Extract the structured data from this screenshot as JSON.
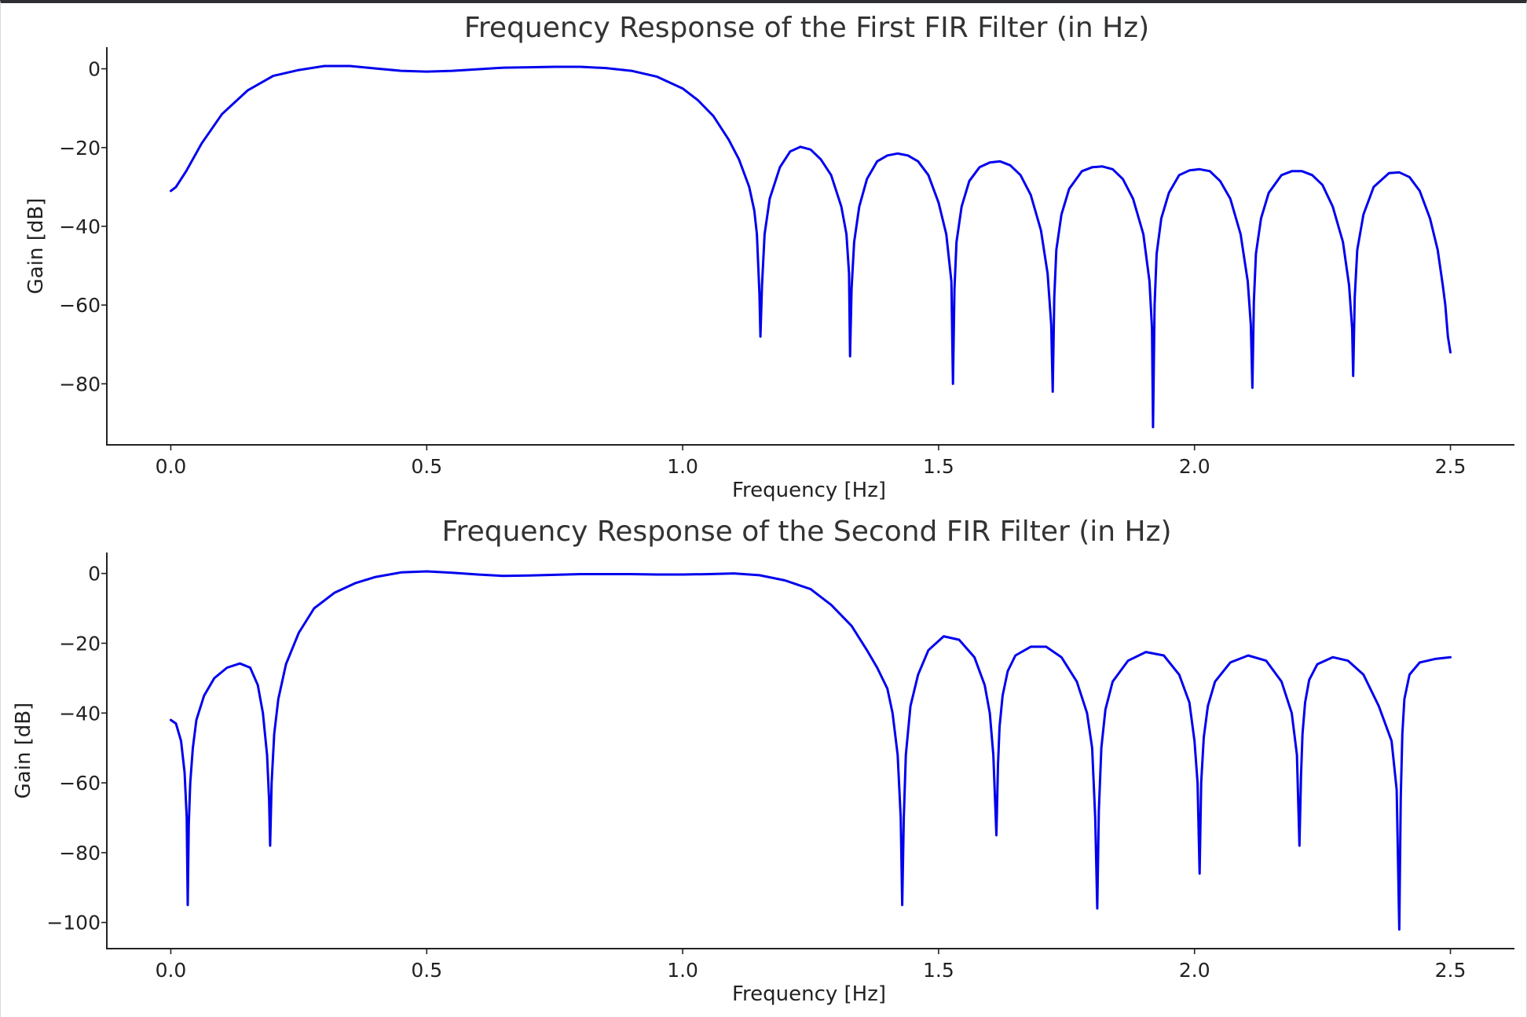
{
  "colors": {
    "line": "#0000ee"
  },
  "chart_data": [
    {
      "type": "line",
      "title": "Frequency Response of the First FIR Filter (in Hz)",
      "xlabel": "Frequency [Hz]",
      "ylabel": "Gain [dB]",
      "xlim": [
        -0.125,
        2.625
      ],
      "ylim": [
        -95.5,
        5.5
      ],
      "xticks": [
        0.0,
        0.5,
        1.0,
        1.5,
        2.0,
        2.5
      ],
      "xtick_labels": [
        "0.0",
        "0.5",
        "1.0",
        "1.5",
        "2.0",
        "2.5"
      ],
      "yticks": [
        0,
        -20,
        -40,
        -60,
        -80
      ],
      "ytick_labels": [
        "0",
        "−20",
        "−40",
        "−60",
        "−80"
      ],
      "grid": false,
      "series": [
        {
          "x": [
            0.0,
            0.01,
            0.03,
            0.06,
            0.1,
            0.15,
            0.2,
            0.25,
            0.3,
            0.35,
            0.4,
            0.45,
            0.5,
            0.55,
            0.6,
            0.65,
            0.7,
            0.75,
            0.8,
            0.85,
            0.9,
            0.95,
            1.0,
            1.03,
            1.06,
            1.09,
            1.11,
            1.13,
            1.14,
            1.145,
            1.15,
            1.152,
            1.155,
            1.16,
            1.17,
            1.19,
            1.21,
            1.23,
            1.25,
            1.27,
            1.29,
            1.31,
            1.32,
            1.325,
            1.327,
            1.33,
            1.335,
            1.345,
            1.36,
            1.38,
            1.4,
            1.42,
            1.44,
            1.46,
            1.48,
            1.5,
            1.515,
            1.525,
            1.528,
            1.531,
            1.535,
            1.545,
            1.56,
            1.58,
            1.6,
            1.62,
            1.64,
            1.66,
            1.68,
            1.7,
            1.713,
            1.72,
            1.723,
            1.726,
            1.73,
            1.74,
            1.755,
            1.78,
            1.8,
            1.82,
            1.84,
            1.86,
            1.88,
            1.9,
            1.912,
            1.917,
            1.919,
            1.922,
            1.926,
            1.935,
            1.95,
            1.97,
            1.99,
            2.01,
            2.03,
            2.05,
            2.07,
            2.09,
            2.104,
            2.11,
            2.113,
            2.116,
            2.12,
            2.13,
            2.145,
            2.17,
            2.19,
            2.21,
            2.23,
            2.25,
            2.27,
            2.29,
            2.302,
            2.308,
            2.31,
            2.313,
            2.318,
            2.33,
            2.35,
            2.38,
            2.4,
            2.42,
            2.44,
            2.46,
            2.475,
            2.485,
            2.49,
            2.495,
            2.5
          ],
          "y": [
            -31,
            -30,
            -26,
            -19,
            -11.5,
            -5.5,
            -1.8,
            -0.3,
            0.7,
            0.7,
            0.1,
            -0.5,
            -0.7,
            -0.5,
            -0.1,
            0.3,
            0.4,
            0.5,
            0.5,
            0.2,
            -0.5,
            -2.0,
            -5,
            -8,
            -12,
            -18,
            -23,
            -30,
            -36,
            -42,
            -57,
            -68,
            -55,
            -42,
            -33,
            -25,
            -21,
            -19.8,
            -20.5,
            -23,
            -27,
            -35,
            -42,
            -52,
            -73,
            -56,
            -44,
            -35,
            -28,
            -23.5,
            -22,
            -21.5,
            -22,
            -23.5,
            -27,
            -34,
            -42,
            -54,
            -80,
            -56,
            -44,
            -35,
            -28.5,
            -25,
            -23.8,
            -23.5,
            -24.5,
            -27,
            -32,
            -41,
            -52,
            -65,
            -82,
            -58,
            -46,
            -37,
            -30.5,
            -26,
            -25,
            -24.8,
            -25.5,
            -28,
            -33,
            -42,
            -54,
            -66,
            -91,
            -60,
            -47,
            -38,
            -31.5,
            -27,
            -25.8,
            -25.5,
            -26,
            -28.5,
            -33,
            -42,
            -54,
            -65,
            -81,
            -59,
            -47,
            -38,
            -31.5,
            -27,
            -26,
            -26,
            -27,
            -29.5,
            -35,
            -44,
            -55,
            -66,
            -78,
            -58,
            -46,
            -37,
            -30,
            -26.5,
            -26.3,
            -27.5,
            -31,
            -38,
            -46,
            -55,
            -60,
            -68,
            -72
          ]
        }
      ]
    },
    {
      "type": "line",
      "title": "Frequency Response of the Second FIR Filter (in Hz)",
      "xlabel": "Frequency [Hz]",
      "ylabel": "Gain [dB]",
      "xlim": [
        -0.125,
        2.625
      ],
      "ylim": [
        -107.5,
        6
      ],
      "xticks": [
        0.0,
        0.5,
        1.0,
        1.5,
        2.0,
        2.5
      ],
      "xtick_labels": [
        "0.0",
        "0.5",
        "1.0",
        "1.5",
        "2.0",
        "2.5"
      ],
      "yticks": [
        0,
        -20,
        -40,
        -60,
        -80,
        -100
      ],
      "ytick_labels": [
        "0",
        "−20",
        "−40",
        "−60",
        "−80",
        "−100"
      ],
      "grid": false,
      "series": [
        {
          "x": [
            0.0,
            0.01,
            0.02,
            0.027,
            0.031,
            0.033,
            0.035,
            0.038,
            0.043,
            0.05,
            0.065,
            0.085,
            0.11,
            0.135,
            0.155,
            0.17,
            0.18,
            0.188,
            0.192,
            0.194,
            0.197,
            0.202,
            0.21,
            0.225,
            0.25,
            0.28,
            0.32,
            0.36,
            0.4,
            0.45,
            0.5,
            0.55,
            0.6,
            0.65,
            0.7,
            0.75,
            0.8,
            0.85,
            0.9,
            0.95,
            1.0,
            1.05,
            1.1,
            1.15,
            1.2,
            1.25,
            1.29,
            1.33,
            1.36,
            1.38,
            1.4,
            1.41,
            1.42,
            1.426,
            1.429,
            1.432,
            1.436,
            1.445,
            1.46,
            1.48,
            1.51,
            1.54,
            1.57,
            1.59,
            1.6,
            1.607,
            1.613,
            1.616,
            1.619,
            1.625,
            1.635,
            1.65,
            1.68,
            1.71,
            1.74,
            1.77,
            1.79,
            1.8,
            1.806,
            1.81,
            1.813,
            1.818,
            1.826,
            1.84,
            1.87,
            1.905,
            1.94,
            1.97,
            1.99,
            2.0,
            2.006,
            2.01,
            2.013,
            2.018,
            2.026,
            2.04,
            2.07,
            2.105,
            2.14,
            2.17,
            2.19,
            2.2,
            2.205,
            2.208,
            2.211,
            2.216,
            2.224,
            2.24,
            2.27,
            2.3,
            2.33,
            2.36,
            2.385,
            2.395,
            2.4,
            2.403,
            2.406,
            2.41,
            2.42,
            2.44,
            2.47,
            2.5
          ],
          "y": [
            -42,
            -43,
            -48,
            -57,
            -70,
            -95,
            -72,
            -60,
            -50,
            -42,
            -35,
            -30,
            -27,
            -25.8,
            -27,
            -32,
            -40,
            -52,
            -65,
            -78,
            -60,
            -46,
            -36,
            -26,
            -17,
            -10,
            -5.5,
            -2.8,
            -1.0,
            0.3,
            0.6,
            0.2,
            -0.3,
            -0.7,
            -0.6,
            -0.4,
            -0.2,
            -0.2,
            -0.2,
            -0.3,
            -0.3,
            -0.2,
            0.0,
            -0.5,
            -2.0,
            -4.5,
            -9,
            -15,
            -22,
            -27,
            -33,
            -40,
            -52,
            -70,
            -95,
            -70,
            -52,
            -38,
            -29,
            -22,
            -18,
            -19,
            -24,
            -32,
            -40,
            -52,
            -75,
            -55,
            -44,
            -35,
            -28,
            -23.5,
            -21,
            -21,
            -24,
            -31,
            -40,
            -50,
            -70,
            -96,
            -68,
            -50,
            -39,
            -31,
            -25,
            -22.5,
            -23.5,
            -29,
            -37,
            -48,
            -60,
            -86,
            -60,
            -47,
            -38,
            -31,
            -25.5,
            -23.5,
            -25,
            -31,
            -40,
            -52,
            -78,
            -58,
            -46,
            -37,
            -30.5,
            -26,
            -24,
            -25,
            -29,
            -38,
            -48,
            -62,
            -102,
            -64,
            -46,
            -36,
            -29,
            -25.5,
            -24.5,
            -24
          ]
        }
      ]
    }
  ]
}
